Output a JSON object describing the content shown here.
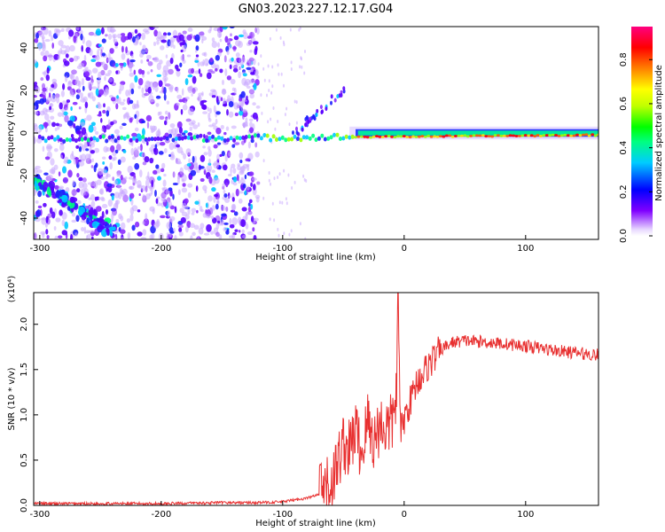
{
  "title": "GN03.2023.227.12.17.G04",
  "chart_data": [
    {
      "type": "heatmap",
      "xlabel": "Height of straight line (km)",
      "ylabel": "Frequency (Hz)",
      "xlim": [
        -305,
        160
      ],
      "ylim": [
        -50,
        50
      ],
      "xticks": [
        -300,
        -200,
        -100,
        0,
        100
      ],
      "yticks": [
        -40,
        -20,
        0,
        20,
        40
      ],
      "colorbar": {
        "label": "Normalized spectral amplitude",
        "range": [
          0,
          0.95
        ],
        "ticks": [
          "0.0",
          "0.2",
          "0.4",
          "0.6",
          "0.8"
        ],
        "tick_values": [
          0,
          0.2,
          0.4,
          0.6,
          0.8
        ],
        "colors": [
          "#ffffff",
          "#8000ff",
          "#0000ff",
          "#00ffff",
          "#00ff00",
          "#ffff00",
          "#ff8000",
          "#ff0000",
          "#ff0080"
        ]
      },
      "features": {
        "carrier_line": {
          "freq_hz": 0,
          "x_range": [
            -300,
            160
          ],
          "strong_from_km": -40
        },
        "descending_trace": {
          "from": [
            -305,
            -22
          ],
          "to": [
            -240,
            -46
          ]
        },
        "rising_trace": {
          "from": [
            -90,
            0
          ],
          "to": [
            -50,
            20
          ]
        }
      }
    },
    {
      "type": "line",
      "xlabel": "Height of straight line (km)",
      "ylabel": "SNR (10 * v/v)",
      "scale_label": "(x10⁴)",
      "xlim": [
        -305,
        160
      ],
      "ylim": [
        0,
        2.35
      ],
      "xticks": [
        -300,
        -200,
        -100,
        0,
        100
      ],
      "yticks": [
        "0.0",
        "0.5",
        "1.0",
        "1.5",
        "2.0"
      ],
      "ytick_values": [
        0,
        0.5,
        1.0,
        1.5,
        2.0
      ],
      "series": [
        {
          "color": "#e83030",
          "x": [
            -305,
            -250,
            -200,
            -150,
            -120,
            -100,
            -80,
            -70,
            -60,
            -55,
            -50,
            -45,
            -40,
            -35,
            -30,
            -25,
            -20,
            -15,
            -10,
            -8,
            -6,
            -5,
            -3,
            0,
            5,
            10,
            20,
            30,
            40,
            50,
            70,
            100,
            130,
            160
          ],
          "y": [
            0.02,
            0.02,
            0.02,
            0.03,
            0.03,
            0.04,
            0.08,
            0.12,
            0.22,
            0.45,
            0.7,
            0.6,
            0.85,
            0.55,
            0.95,
            0.7,
            0.9,
            0.85,
            0.9,
            1.1,
            1.3,
            2.3,
            0.8,
            0.95,
            1.15,
            1.35,
            1.55,
            1.72,
            1.8,
            1.82,
            1.8,
            1.76,
            1.7,
            1.66
          ]
        }
      ]
    }
  ]
}
